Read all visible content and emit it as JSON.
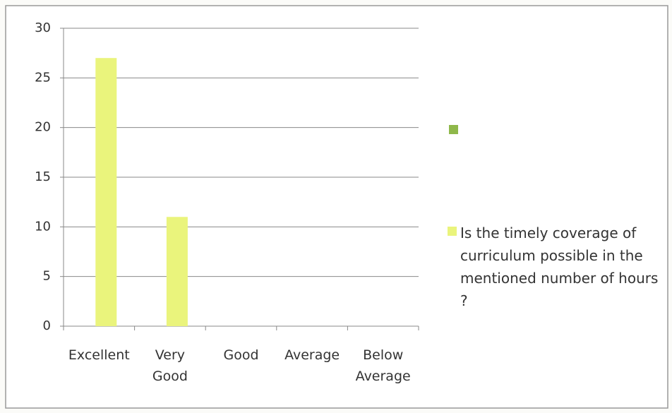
{
  "chart_data": {
    "type": "bar",
    "categories": [
      "Excellent",
      "Very Good",
      "Good",
      "Average",
      "Below Average"
    ],
    "series": [
      {
        "name": "Is the timely coverage of curriculum possible in the mentioned number of hours ?",
        "color": "#eaf47c",
        "values": [
          27,
          11,
          0,
          0,
          0
        ]
      }
    ],
    "ylim": [
      0,
      30
    ],
    "yticks": [
      0,
      5,
      10,
      15,
      20,
      25,
      30
    ],
    "grid": true,
    "legend": "right"
  }
}
